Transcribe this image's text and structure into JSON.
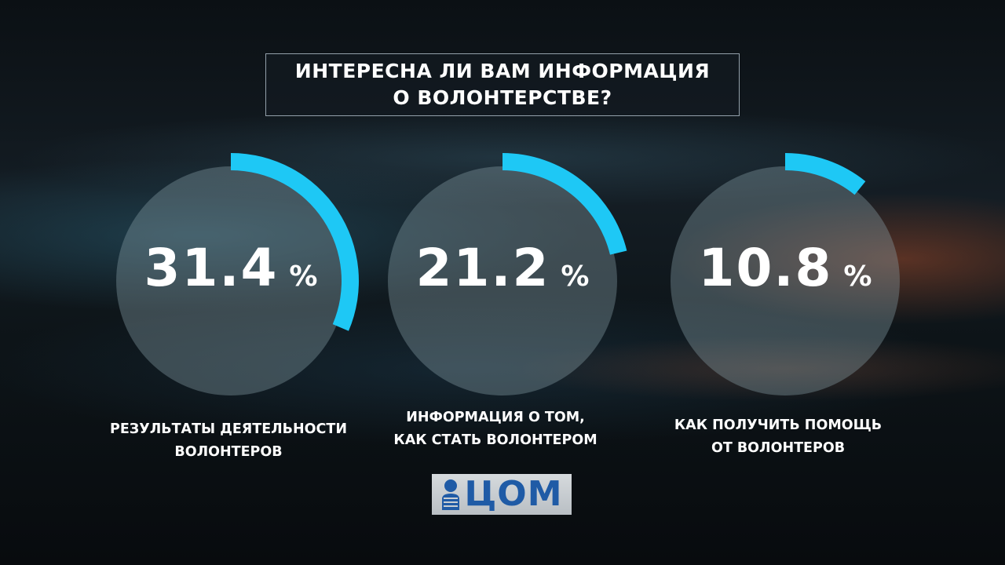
{
  "title": {
    "line1": "ИНТЕРЕСНА ЛИ ВАМ ИНФОРМАЦИЯ",
    "line2": "О ВОЛОНТЕРСТВЕ?"
  },
  "chart_data": {
    "type": "gauge",
    "unit": "%",
    "items": [
      {
        "value": 31.4,
        "value_text": "31.4",
        "label_line1": "РЕЗУЛЬТАТЫ ДЕЯТЕЛЬНОСТИ",
        "label_line2": "ВОЛОНТЕРОВ"
      },
      {
        "value": 21.2,
        "value_text": "21.2",
        "label_line1": "ИНФОРМАЦИЯ О ТОМ,",
        "label_line2": "КАК СТАТЬ ВОЛОНТЕРОМ"
      },
      {
        "value": 10.8,
        "value_text": "10.8",
        "label_line1": "КАК ПОЛУЧИТЬ ПОМОЩЬ",
        "label_line2": "ОТ ВОЛОНТЕРОВ"
      }
    ],
    "arc_color": "#1ec8f5",
    "disc_color": "#8aa0a8"
  },
  "logo": {
    "text": "ЦОМ",
    "color": "#1f5ba6"
  }
}
